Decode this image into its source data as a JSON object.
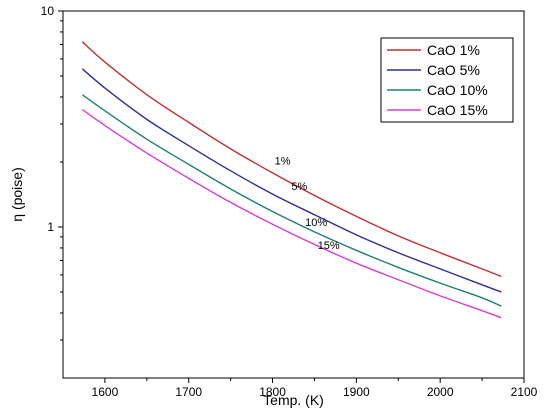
{
  "chart_data": {
    "type": "line",
    "title": "",
    "xlabel": "Temp. (K)",
    "ylabel": "η (poise)",
    "xlim": [
      1550,
      2100
    ],
    "ylim": [
      0.2,
      10
    ],
    "yscale": "log",
    "xticks": [
      1600,
      1700,
      1800,
      1900,
      2000,
      2100
    ],
    "xtick_labels": [
      "1600",
      "1700",
      "1800",
      "1900",
      "2000",
      "2100"
    ],
    "yticks": [
      1,
      10
    ],
    "ytick_labels": [
      "1",
      "10"
    ],
    "grid": false,
    "legend_position": "top-right",
    "series": [
      {
        "name": "CaO 1%",
        "color": "#c0302c",
        "x": [
          1573,
          1600,
          1650,
          1700,
          1750,
          1800,
          1850,
          1900,
          1950,
          2000,
          2050,
          2073
        ],
        "y": [
          7.2,
          5.8,
          4.1,
          3.05,
          2.3,
          1.78,
          1.4,
          1.12,
          0.91,
          0.76,
          0.64,
          0.59
        ]
      },
      {
        "name": "CaO 5%",
        "color": "#2e2e9a",
        "x": [
          1573,
          1600,
          1650,
          1700,
          1750,
          1800,
          1850,
          1900,
          1950,
          2000,
          2050,
          2073
        ],
        "y": [
          5.4,
          4.4,
          3.15,
          2.38,
          1.82,
          1.42,
          1.14,
          0.92,
          0.76,
          0.64,
          0.54,
          0.5
        ]
      },
      {
        "name": "CaO 10%",
        "color": "#1f8070",
        "x": [
          1573,
          1600,
          1650,
          1700,
          1750,
          1800,
          1850,
          1900,
          1950,
          2000,
          2050,
          2073
        ],
        "y": [
          4.1,
          3.45,
          2.55,
          1.95,
          1.5,
          1.18,
          0.95,
          0.78,
          0.65,
          0.55,
          0.47,
          0.43
        ]
      },
      {
        "name": "CaO 15%",
        "color": "#d63fd6",
        "x": [
          1573,
          1600,
          1650,
          1700,
          1750,
          1800,
          1850,
          1900,
          1950,
          2000,
          2050,
          2073
        ],
        "y": [
          3.5,
          2.95,
          2.2,
          1.68,
          1.3,
          1.03,
          0.83,
          0.68,
          0.57,
          0.48,
          0.41,
          0.38
        ]
      }
    ],
    "annotations": [
      {
        "text": "1%",
        "x": 1812,
        "y": 1.95
      },
      {
        "text": "5%",
        "x": 1832,
        "y": 1.48
      },
      {
        "text": "10%",
        "x": 1852,
        "y": 1.01
      },
      {
        "text": "15%",
        "x": 1867,
        "y": 0.79
      }
    ]
  }
}
